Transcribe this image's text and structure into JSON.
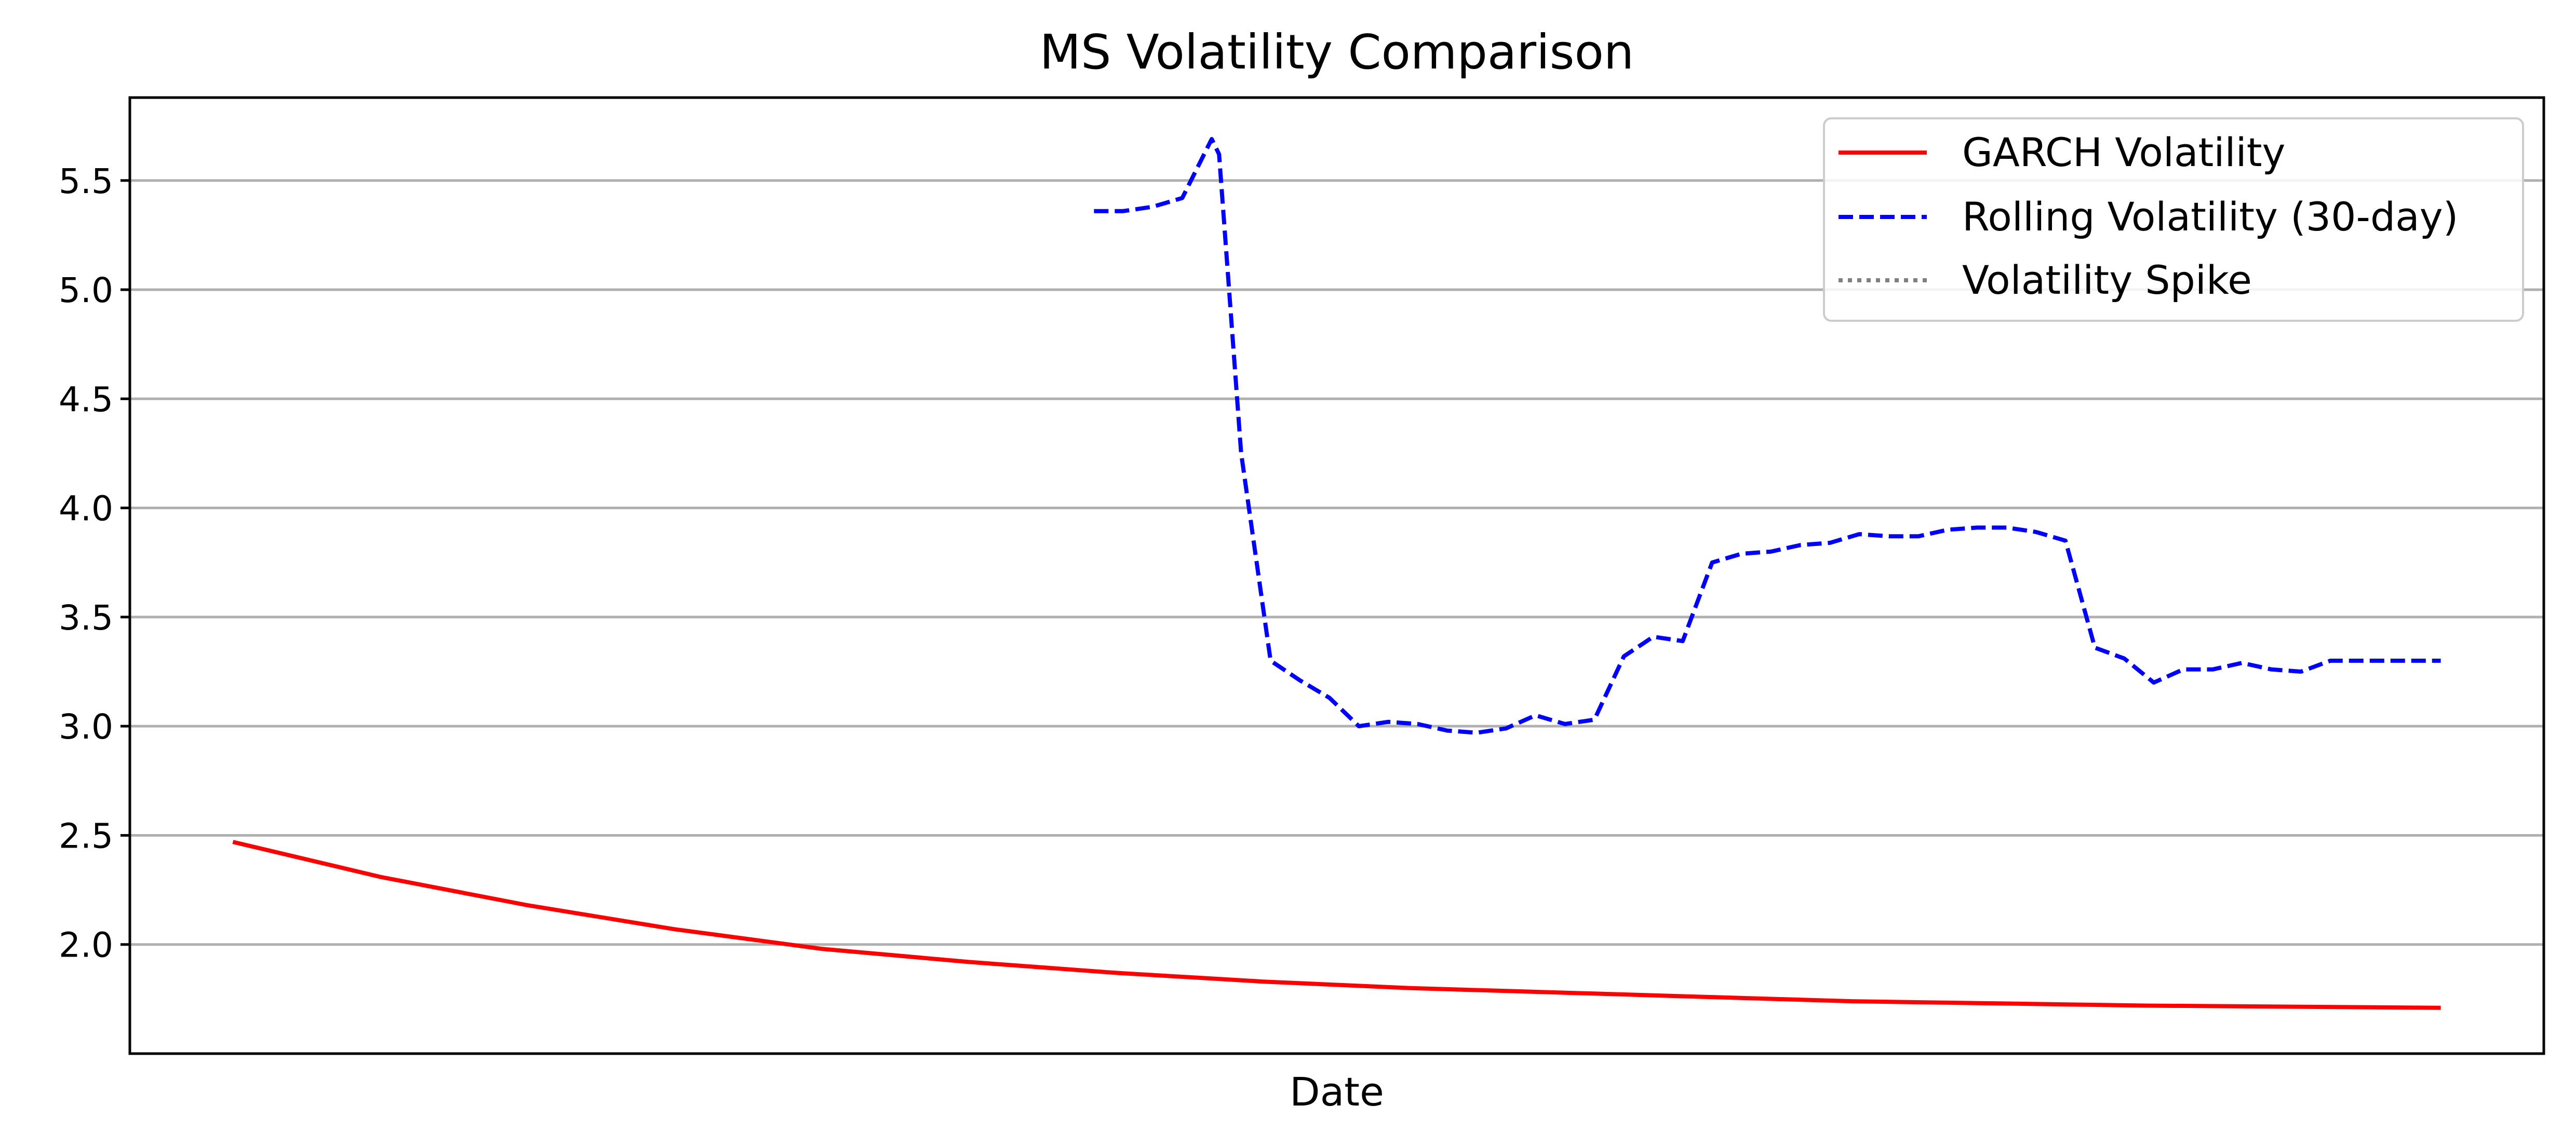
{
  "chart_data": {
    "type": "line",
    "title": "MS Volatility Comparison",
    "xlabel": "Date",
    "ylabel": "",
    "ylim": [
      1.5,
      5.88
    ],
    "xlim": [
      -14,
      314
    ],
    "yticks": [
      2.0,
      2.5,
      3.0,
      3.5,
      4.0,
      4.5,
      5.0,
      5.5
    ],
    "ytick_labels": [
      "2.0",
      "2.5",
      "3.0",
      "3.5",
      "4.0",
      "4.5",
      "5.0",
      "5.5"
    ],
    "grid": "horizontal",
    "legend_position": "top-right",
    "series": [
      {
        "name": "GARCH Volatility",
        "color": "#ff0000",
        "style": "solid",
        "x": [
          0,
          20,
          40,
          60,
          80,
          100,
          120,
          140,
          160,
          180,
          200,
          220,
          240,
          260,
          280,
          300
        ],
        "values": [
          2.47,
          2.31,
          2.18,
          2.07,
          1.98,
          1.92,
          1.87,
          1.83,
          1.8,
          1.78,
          1.76,
          1.74,
          1.73,
          1.72,
          1.715,
          1.71
        ]
      },
      {
        "name": "Rolling Volatility (30-day)",
        "color": "#0000ff",
        "style": "dashed",
        "x": [
          117,
          121,
          125,
          129,
          133,
          134,
          137,
          141,
          145,
          149,
          153,
          157,
          161,
          165,
          169,
          173,
          177,
          181,
          185,
          189,
          193,
          197,
          201,
          205,
          209,
          213,
          217,
          221,
          225,
          229,
          233,
          237,
          241,
          245,
          249,
          253,
          257,
          261,
          265,
          269,
          273,
          277,
          281,
          285,
          289,
          293,
          297,
          300
        ],
        "values": [
          5.36,
          5.36,
          5.38,
          5.42,
          5.69,
          5.62,
          4.25,
          3.3,
          3.21,
          3.13,
          3.0,
          3.02,
          3.01,
          2.98,
          2.97,
          2.99,
          3.05,
          3.01,
          3.03,
          3.32,
          3.41,
          3.39,
          3.75,
          3.79,
          3.8,
          3.83,
          3.84,
          3.88,
          3.87,
          3.87,
          3.9,
          3.91,
          3.91,
          3.89,
          3.85,
          3.36,
          3.31,
          3.2,
          3.26,
          3.26,
          3.29,
          3.26,
          3.25,
          3.3,
          3.3,
          3.3,
          3.3,
          3.3
        ]
      },
      {
        "name": "Volatility Spike",
        "color": "#808080",
        "style": "dotted",
        "x": [],
        "values": []
      }
    ]
  }
}
